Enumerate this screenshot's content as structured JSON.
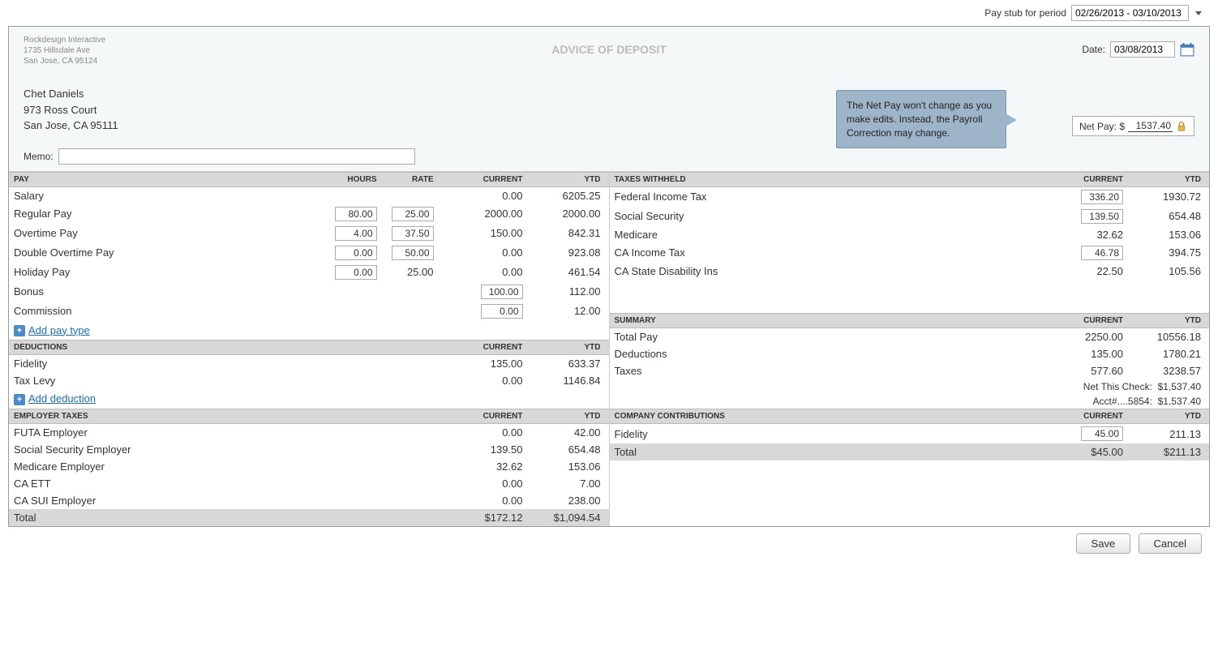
{
  "top": {
    "period_label": "Pay stub for period",
    "period_value": "02/26/2013 - 03/10/2013"
  },
  "header": {
    "company": {
      "line1": "Rockdesign Interactive",
      "line2": "1735 Hillsdale Ave",
      "line3": "San Jose, CA 95124"
    },
    "advice_title": "ADVICE OF DEPOSIT",
    "date_label": "Date:",
    "date_value": "03/08/2013",
    "netpay_label": "Net Pay: $",
    "netpay_value": "1537.40",
    "tooltip": "The Net Pay won't change as you make edits. Instead, the Payroll Correction may change.",
    "employee": {
      "name": "Chet Daniels",
      "addr1": "973 Ross Court",
      "addr2": "San Jose, CA 95111"
    },
    "memo_label": "Memo:",
    "memo_value": ""
  },
  "sections": {
    "pay_head": {
      "title": "PAY",
      "hours": "Hours",
      "rate": "Rate",
      "current": "Current",
      "ytd": "YTD"
    },
    "pay_rows": [
      {
        "label": "Salary",
        "hours": "",
        "rate": "",
        "current": "0.00",
        "ytd": "6205.25",
        "hours_boxed": false,
        "rate_boxed": false,
        "current_boxed": false
      },
      {
        "label": "Regular Pay",
        "hours": "80.00",
        "rate": "25.00",
        "current": "2000.00",
        "ytd": "2000.00",
        "hours_boxed": true,
        "rate_boxed": true,
        "current_boxed": false
      },
      {
        "label": "Overtime Pay",
        "hours": "4.00",
        "rate": "37.50",
        "current": "150.00",
        "ytd": "842.31",
        "hours_boxed": true,
        "rate_boxed": true,
        "current_boxed": false
      },
      {
        "label": "Double Overtime Pay",
        "hours": "0.00",
        "rate": "50.00",
        "current": "0.00",
        "ytd": "923.08",
        "hours_boxed": true,
        "rate_boxed": true,
        "current_boxed": false
      },
      {
        "label": "Holiday Pay",
        "hours": "0.00",
        "rate": "25.00",
        "current": "0.00",
        "ytd": "461.54",
        "hours_boxed": true,
        "rate_boxed": false,
        "current_boxed": false
      },
      {
        "label": "Bonus",
        "hours": "",
        "rate": "",
        "current": "100.00",
        "ytd": "112.00",
        "hours_boxed": false,
        "rate_boxed": false,
        "current_boxed": true
      },
      {
        "label": "Commission",
        "hours": "",
        "rate": "",
        "current": "0.00",
        "ytd": "12.00",
        "hours_boxed": false,
        "rate_boxed": false,
        "current_boxed": true
      }
    ],
    "add_pay_label": "Add pay type",
    "ded_head": {
      "title": "DEDUCTIONS",
      "current": "Current",
      "ytd": "YTD"
    },
    "ded_rows": [
      {
        "label": "Fidelity",
        "current": "135.00",
        "ytd": "633.37"
      },
      {
        "label": "Tax Levy",
        "current": "0.00",
        "ytd": "1146.84"
      }
    ],
    "add_ded_label": "Add deduction",
    "tax_head": {
      "title": "TAXES WITHHELD",
      "current": "Current",
      "ytd": "YTD"
    },
    "tax_rows": [
      {
        "label": "Federal Income Tax",
        "current": "336.20",
        "ytd": "1930.72",
        "boxed": true
      },
      {
        "label": "Social Security",
        "current": "139.50",
        "ytd": "654.48",
        "boxed": true
      },
      {
        "label": "Medicare",
        "current": "32.62",
        "ytd": "153.06",
        "boxed": false
      },
      {
        "label": "CA Income Tax",
        "current": "46.78",
        "ytd": "394.75",
        "boxed": true
      },
      {
        "label": "CA State Disability Ins",
        "current": "22.50",
        "ytd": "105.56",
        "boxed": false
      }
    ],
    "summary_head": {
      "title": "SUMMARY",
      "current": "Current",
      "ytd": "YTD"
    },
    "summary_rows": [
      {
        "label": "Total Pay",
        "current": "2250.00",
        "ytd": "10556.18"
      },
      {
        "label": "Deductions",
        "current": "135.00",
        "ytd": "1780.21"
      },
      {
        "label": "Taxes",
        "current": "577.60",
        "ytd": "3238.57"
      }
    ],
    "net_line1_label": "Net This Check:",
    "net_line1_value": "$1,537.40",
    "net_line2_label": "Acct#....5854:",
    "net_line2_value": "$1,537.40",
    "emp_tax_head": {
      "title": "EMPLOYER TAXES",
      "current": "Current",
      "ytd": "YTD"
    },
    "emp_tax_rows": [
      {
        "label": "FUTA Employer",
        "current": "0.00",
        "ytd": "42.00"
      },
      {
        "label": "Social Security Employer",
        "current": "139.50",
        "ytd": "654.48"
      },
      {
        "label": "Medicare Employer",
        "current": "32.62",
        "ytd": "153.06"
      },
      {
        "label": "CA ETT",
        "current": "0.00",
        "ytd": "7.00"
      },
      {
        "label": "CA SUI Employer",
        "current": "0.00",
        "ytd": "238.00"
      }
    ],
    "emp_tax_total": {
      "label": "Total",
      "current": "$172.12",
      "ytd": "$1,094.54"
    },
    "contrib_head": {
      "title": "COMPANY CONTRIBUTIONS",
      "current": "Current",
      "ytd": "YTD"
    },
    "contrib_rows": [
      {
        "label": "Fidelity",
        "current": "45.00",
        "ytd": "211.13",
        "boxed": true
      }
    ],
    "contrib_total": {
      "label": "Total",
      "current": "$45.00",
      "ytd": "$211.13"
    }
  },
  "footer": {
    "save": "Save",
    "cancel": "Cancel"
  }
}
